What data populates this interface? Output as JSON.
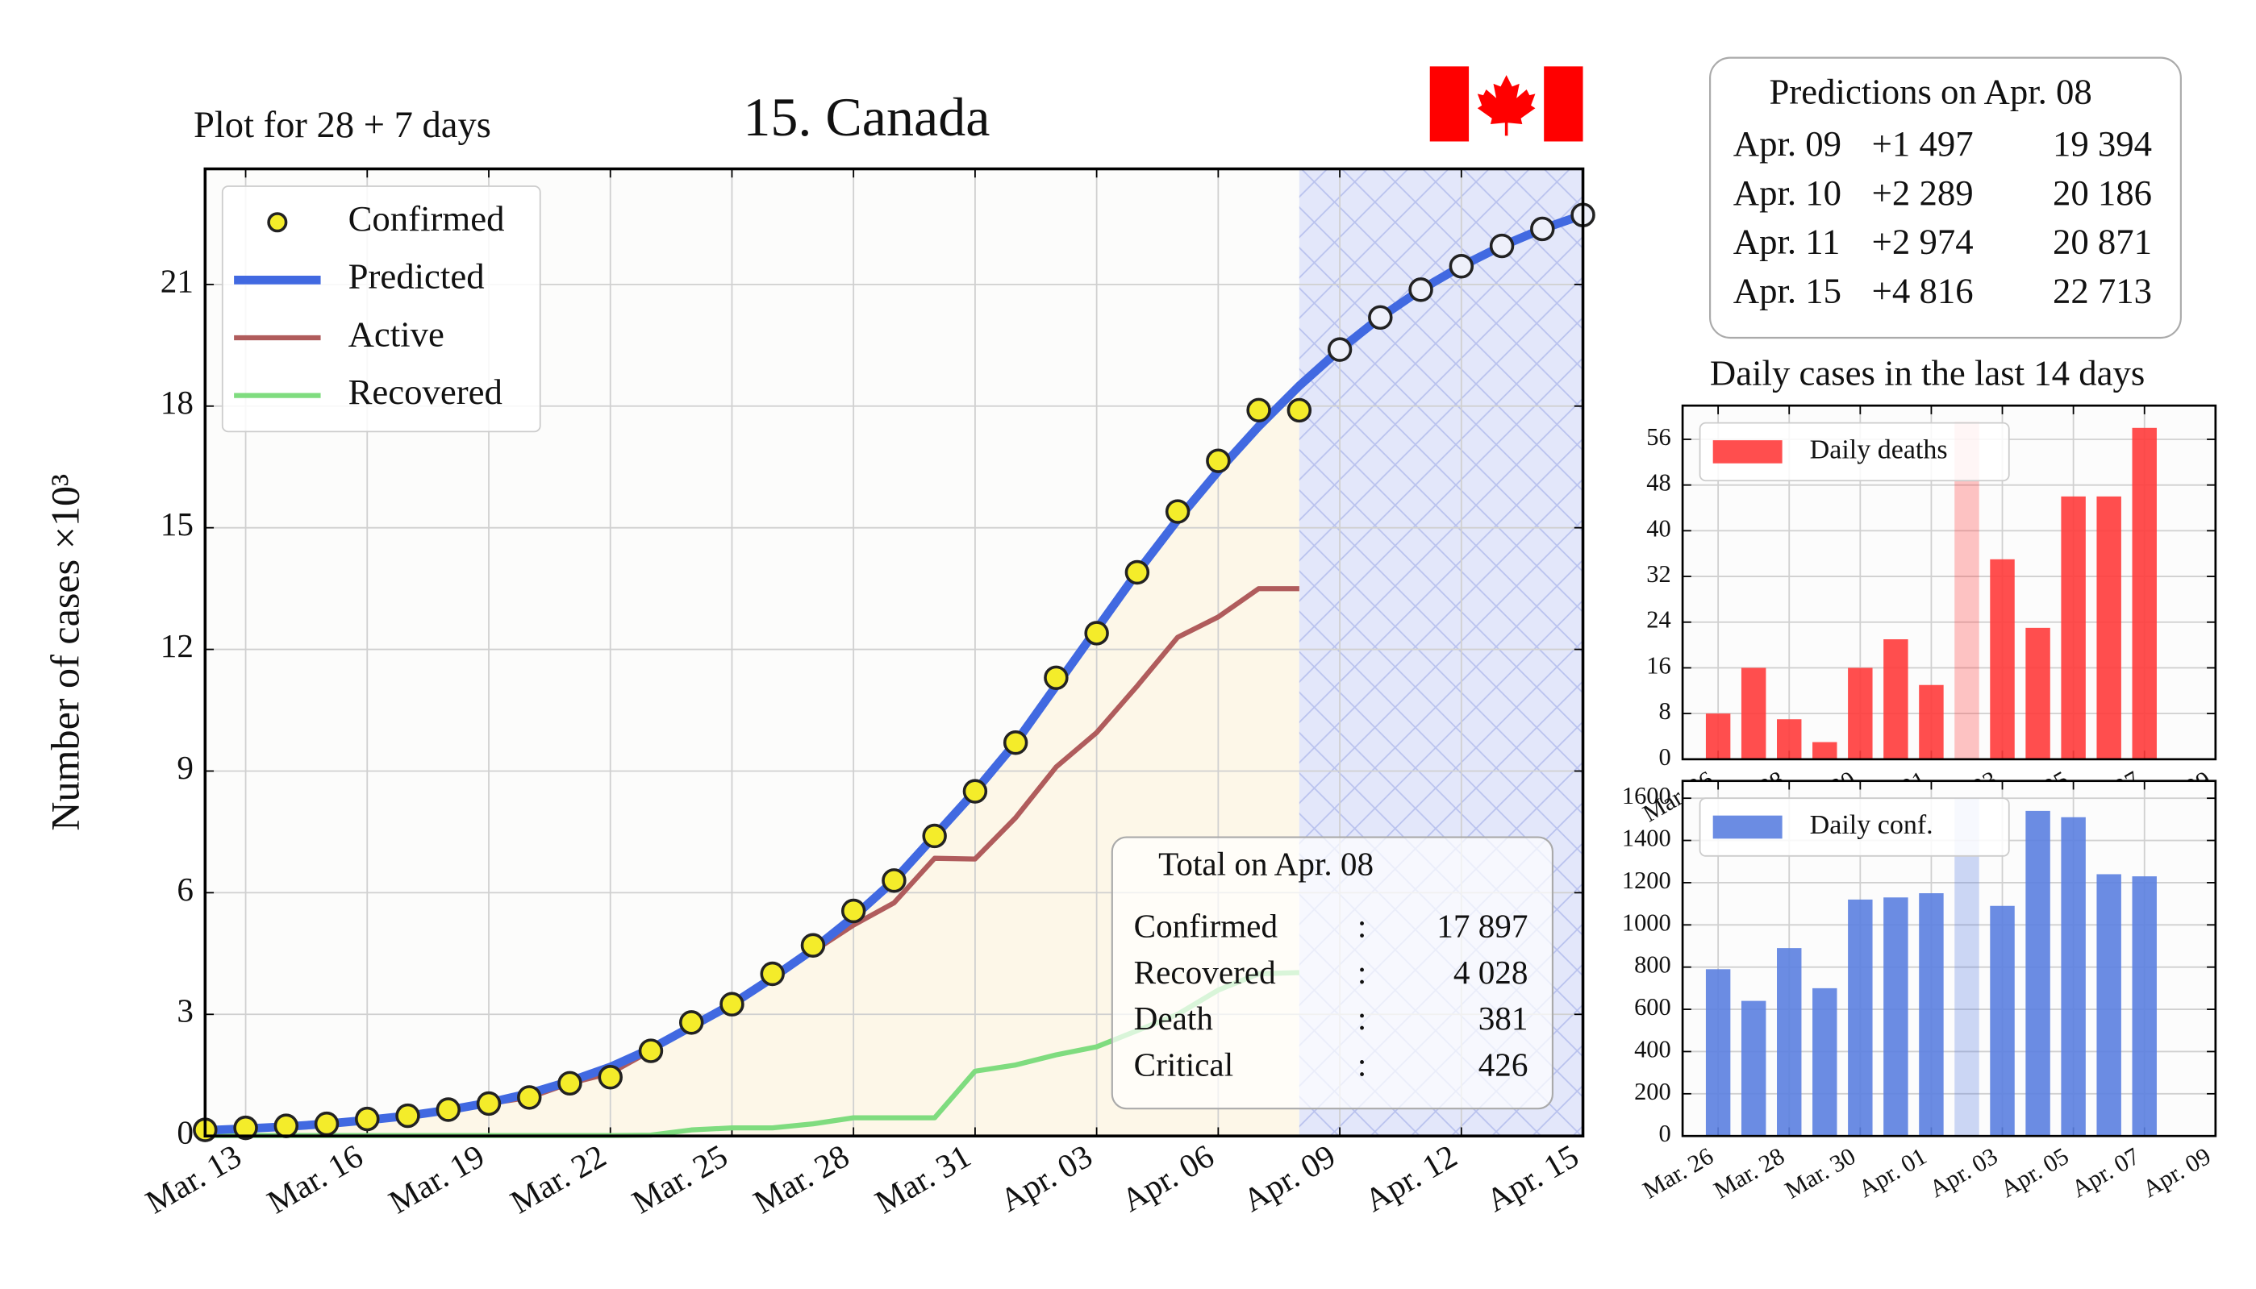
{
  "chart_data": [
    {
      "type": "line",
      "title": "15. Canada",
      "subtitle": "Plot for 28 + 7 days",
      "y_label": "Number of cases ×10³",
      "categories": [
        null,
        "Mar. 13",
        null,
        null,
        "Mar. 16",
        null,
        null,
        "Mar. 19",
        null,
        null,
        "Mar. 22",
        null,
        null,
        "Mar. 25",
        null,
        null,
        "Mar. 28",
        null,
        null,
        "Mar. 31",
        null,
        null,
        "Apr. 03",
        null,
        null,
        "Apr. 06",
        null,
        null,
        "Apr. 09",
        null,
        null,
        "Apr. 12",
        null,
        null,
        "Apr. 15"
      ],
      "ylim": [
        0,
        23.85
      ],
      "yticks": [
        0,
        3,
        6,
        9,
        12,
        15,
        18,
        21
      ],
      "grid": true,
      "legend": "upper left",
      "series": [
        {
          "name": "Confirmed",
          "color": "#f4ec2a",
          "marker": "circle",
          "values": [
            0.15,
            0.2,
            0.25,
            0.3,
            0.42,
            0.5,
            0.65,
            0.8,
            0.95,
            1.3,
            1.45,
            2.1,
            2.8,
            3.25,
            4.0,
            4.7,
            5.55,
            6.3,
            7.4,
            8.5,
            9.7,
            11.3,
            12.4,
            13.9,
            15.4,
            16.65,
            17.9,
            17.897,
            null,
            null,
            null,
            null,
            null,
            null,
            null
          ]
        },
        {
          "name": "Predicted",
          "color": "#4169e1",
          "values": [
            0.14,
            0.18,
            0.23,
            0.3,
            0.39,
            0.5,
            0.64,
            0.82,
            1.05,
            1.35,
            1.7,
            2.15,
            2.7,
            3.25,
            3.9,
            4.6,
            5.4,
            6.3,
            7.4,
            8.5,
            9.7,
            11.1,
            12.5,
            13.9,
            15.2,
            16.4,
            17.5,
            18.5,
            19.394,
            20.186,
            20.871,
            21.45,
            21.95,
            22.37,
            22.713
          ]
        },
        {
          "name": "Active",
          "color": "#b05c5c",
          "values": [
            0.13,
            0.2,
            0.25,
            0.3,
            0.4,
            0.5,
            0.65,
            0.8,
            0.95,
            1.3,
            1.55,
            2.1,
            2.75,
            3.25,
            3.95,
            4.55,
            5.2,
            5.75,
            6.85,
            6.83,
            7.85,
            9.1,
            9.95,
            11.1,
            12.3,
            12.8,
            13.5,
            13.5,
            null,
            null,
            null,
            null,
            null,
            null,
            null
          ]
        },
        {
          "name": "Recovered",
          "color": "#7fdc7f",
          "values": [
            0.01,
            0.01,
            0.01,
            0.01,
            0.01,
            0.01,
            0.01,
            0.01,
            0.01,
            0.01,
            0.01,
            0.02,
            0.15,
            0.2,
            0.2,
            0.3,
            0.45,
            0.45,
            0.45,
            1.6,
            1.75,
            2.0,
            2.2,
            2.6,
            3.0,
            3.6,
            4.0,
            4.028,
            null,
            null,
            null,
            null,
            null,
            null,
            null
          ]
        }
      ]
    },
    {
      "type": "bar",
      "title": "Daily cases in the last 14 days",
      "categories": [
        "Mar. 26",
        null,
        "Mar. 28",
        null,
        "Mar. 30",
        null,
        "Apr. 01",
        null,
        "Apr. 03",
        null,
        "Apr. 05",
        null,
        "Apr. 07",
        null,
        "Apr. 09"
      ],
      "ylim": [
        0,
        61.9
      ],
      "yticks": [
        0,
        8,
        16,
        24,
        32,
        40,
        48,
        56
      ],
      "grid": true,
      "legend": "upper left",
      "highlight": 7,
      "series": [
        {
          "name": "Daily deaths",
          "color": "#ff3b3b",
          "values": [
            8,
            16,
            7,
            3,
            16,
            21,
            13,
            59,
            35,
            23,
            46,
            46,
            58,
            0,
            null
          ]
        }
      ]
    },
    {
      "type": "bar",
      "categories": [
        "Mar. 26",
        null,
        "Mar. 28",
        null,
        "Mar. 30",
        null,
        "Apr. 01",
        null,
        "Apr. 03",
        null,
        "Apr. 05",
        null,
        "Apr. 07",
        null,
        "Apr. 09"
      ],
      "ylim": [
        0,
        1682
      ],
      "yticks": [
        0,
        200,
        400,
        600,
        800,
        1000,
        1200,
        1400,
        1600
      ],
      "grid": true,
      "legend": "upper left",
      "highlight": 7,
      "series": [
        {
          "name": "Daily conf.",
          "color": "#5b7fe0",
          "values": [
            790,
            640,
            890,
            700,
            1120,
            1130,
            1150,
            1600,
            1090,
            1540,
            1510,
            1240,
            1230,
            0,
            null
          ]
        }
      ]
    }
  ],
  "total_box": {
    "title": "Total on Apr. 08",
    "rows": [
      [
        "Confirmed",
        ":",
        "17 897"
      ],
      [
        "Recovered",
        ":",
        "4 028"
      ],
      [
        "Death",
        ":",
        "381"
      ],
      [
        "Critical",
        ":",
        "426"
      ]
    ]
  },
  "predictions": {
    "title": "Predictions on Apr. 08",
    "rows": [
      [
        "Apr. 09",
        "+1 497",
        "19 394"
      ],
      [
        "Apr. 10",
        "+2 289",
        "20 186"
      ],
      [
        "Apr. 11",
        "+2 974",
        "20 871"
      ],
      [
        "Apr. 15",
        "+4 816",
        "22 713"
      ]
    ]
  }
}
